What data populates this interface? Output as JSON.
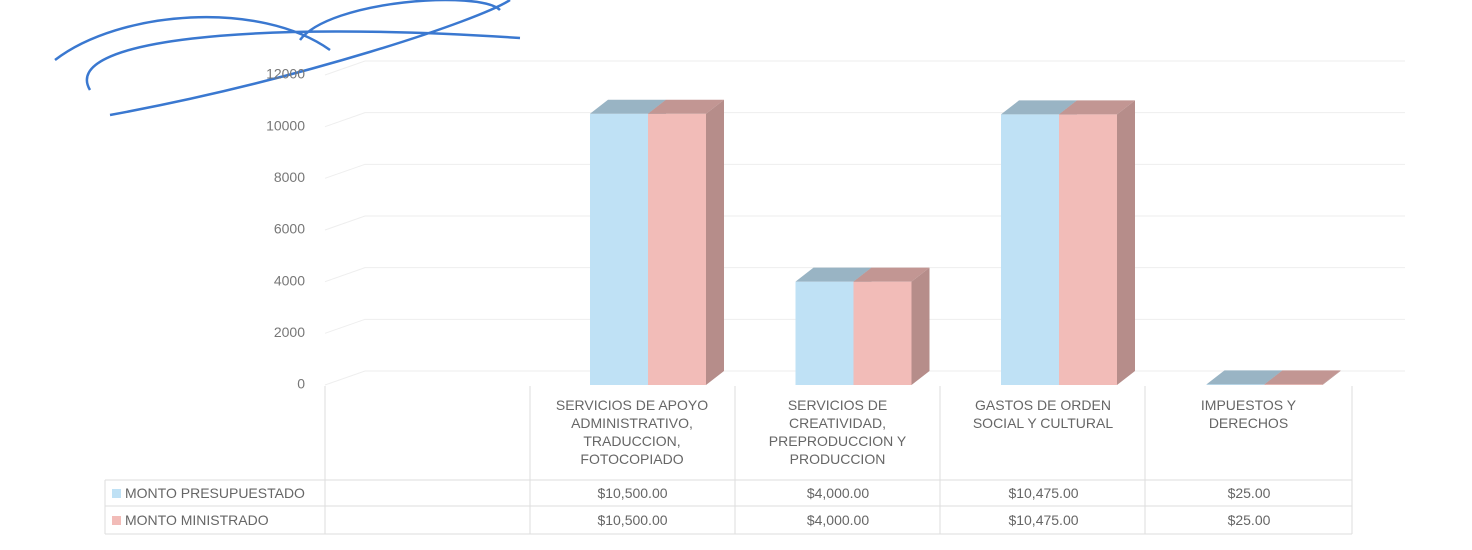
{
  "chart_data": {
    "type": "bar3d",
    "categories": [
      "SERVICIOS DE APOYO ADMINISTRATIVO, TRADUCCION, FOTOCOPIADO",
      "SERVICIOS DE CREATIVIDAD, PREPRODUCCION Y PRODUCCION",
      "GASTOS DE ORDEN SOCIAL Y CULTURAL",
      "IMPUESTOS Y DERECHOS"
    ],
    "series": [
      {
        "name": "MONTO PRESUPUESTADO",
        "color": "#bfe1f5",
        "values": [
          10500,
          4000,
          10475,
          25
        ],
        "value_labels": [
          "$10,500.00",
          "$4,000.00",
          "$10,475.00",
          "$25.00"
        ]
      },
      {
        "name": "MONTO MINISTRADO",
        "color": "#f2bcb8",
        "values": [
          10500,
          4000,
          10475,
          25
        ],
        "value_labels": [
          "$10,500.00",
          "$4,000.00",
          "$10,475.00",
          "$25.00"
        ]
      }
    ],
    "ylim": [
      0,
      12000
    ],
    "yticks": [
      0,
      2000,
      4000,
      6000,
      8000,
      10000,
      12000
    ],
    "grid": true
  }
}
